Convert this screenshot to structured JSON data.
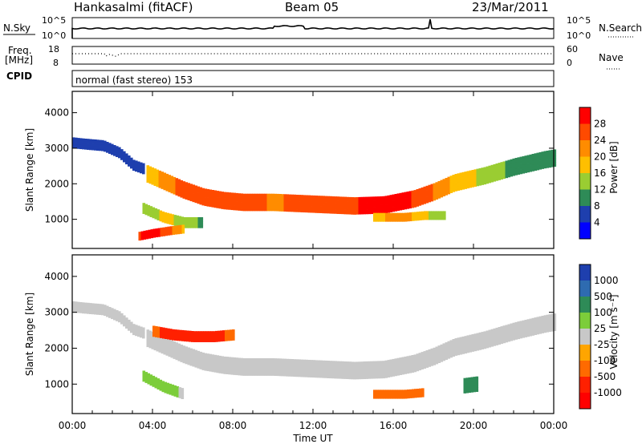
{
  "header": {
    "station": "Hankasalmi (fitACF)",
    "beam": "Beam 05",
    "date": "23/Mar/2011"
  },
  "strip_panels": {
    "nsky_label": "N.Sky",
    "nsearch_label": "N.Search",
    "nsky_ticks": [
      "10^5",
      "10^0"
    ],
    "nsearch_ticks": [
      "10^5",
      "10^0"
    ],
    "freq_label": [
      "Freq.",
      "[MHz]"
    ],
    "freq_ticks": [
      "18",
      "8"
    ],
    "nave_label": "Nave",
    "nave_ticks": [
      "60",
      "0"
    ],
    "cpid_label": "CPID",
    "cpid_text": "normal (fast stereo) 153"
  },
  "axes": {
    "x_label": "Time UT",
    "x_ticks": [
      "00:00",
      "04:00",
      "08:00",
      "12:00",
      "16:00",
      "20:00",
      "00:00"
    ],
    "y_label": "Slant Range [km]",
    "y_ticks": [
      "4000",
      "3000",
      "2000",
      "1000"
    ]
  },
  "colorbars": {
    "power": {
      "label": "Power [dB]",
      "ticks": [
        "28",
        "24",
        "20",
        "16",
        "12",
        "8",
        "4"
      ],
      "colors": [
        "#ff0000",
        "#ff4a00",
        "#ff8c00",
        "#ffbf00",
        "#9acd32",
        "#2e8b57",
        "#1e3fae",
        "#0000ff"
      ]
    },
    "velocity": {
      "label": "Velocity [m s⁻¹]",
      "ticks": [
        "1000",
        "500",
        "100",
        "25",
        "-25",
        "-100",
        "-500",
        "-1000"
      ],
      "colors": [
        "#1e3fae",
        "#2e6bb0",
        "#2e8b57",
        "#7ccd3a",
        "#c8c8c8",
        "#ffa500",
        "#ff6a00",
        "#ff2000",
        "#ff0000"
      ]
    }
  },
  "chart_data": [
    {
      "type": "heatmap",
      "title": "Power [dB]",
      "xlabel": "Time UT",
      "ylabel": "Slant Range [km]",
      "xlim": [
        0,
        24
      ],
      "ylim": [
        180,
        4600
      ],
      "zlim": [
        0,
        30
      ],
      "bands": [
        {
          "t": [
            0,
            0.5,
            1.5,
            2.3,
            3.0,
            3.5
          ],
          "r": [
            3130,
            3100,
            3050,
            2850,
            2500,
            2400
          ],
          "w": 250,
          "v": [
            6,
            6,
            7,
            7,
            6,
            6
          ]
        },
        {
          "t": [
            3.7,
            4.5,
            5.5,
            6.5,
            7.5,
            8.5,
            10,
            12,
            14,
            15.5,
            17,
            18,
            19,
            20.5,
            22,
            23.5,
            24
          ],
          "r": [
            2250,
            2050,
            1800,
            1600,
            1500,
            1450,
            1450,
            1400,
            1350,
            1380,
            1550,
            1750,
            2000,
            2200,
            2450,
            2650,
            2700
          ],
          "w": 420,
          "v": [
            16,
            20,
            24,
            26,
            26,
            24,
            22,
            24,
            26,
            28,
            26,
            22,
            18,
            14,
            10,
            8,
            8
          ]
        },
        {
          "t": [
            3.5,
            4.5,
            5.5,
            6.5
          ],
          "r": [
            1300,
            1050,
            900,
            900
          ],
          "w": 280,
          "v": [
            12,
            16,
            14,
            10
          ]
        },
        {
          "t": [
            3.3,
            4.0,
            4.8,
            5.5
          ],
          "r": [
            500,
            580,
            650,
            700
          ],
          "w": 180,
          "v": [
            26,
            28,
            24,
            18
          ]
        },
        {
          "t": [
            15.0,
            16.5,
            17.5,
            18.5
          ],
          "r": [
            1050,
            1050,
            1100,
            1100
          ],
          "w": 220,
          "v": [
            18,
            20,
            16,
            12
          ]
        }
      ]
    },
    {
      "type": "heatmap",
      "title": "Velocity [m s⁻¹]",
      "xlabel": "Time UT",
      "ylabel": "Slant Range [km]",
      "xlim": [
        0,
        24
      ],
      "ylim": [
        180,
        4600
      ],
      "zlim": [
        -1000,
        1000
      ],
      "bands": [
        {
          "t": [
            0,
            0.5,
            1.5,
            2.3,
            3.0,
            3.5
          ],
          "r": [
            3130,
            3100,
            3050,
            2850,
            2500,
            2400
          ],
          "w": 250,
          "v": [
            0,
            0,
            0,
            0,
            0,
            0
          ]
        },
        {
          "t": [
            3.7,
            4.5,
            5.5,
            6.5,
            7.5,
            8.5,
            10,
            12,
            14,
            15.5,
            17,
            18,
            19,
            20.5,
            22,
            23.5,
            24
          ],
          "r": [
            2250,
            2050,
            1800,
            1600,
            1500,
            1450,
            1450,
            1400,
            1350,
            1380,
            1550,
            1750,
            2000,
            2200,
            2450,
            2650,
            2700
          ],
          "w": 420,
          "v": [
            0,
            0,
            0,
            0,
            0,
            0,
            0,
            0,
            0,
            0,
            0,
            0,
            0,
            0,
            0,
            0,
            0
          ]
        },
        {
          "t": [
            4.0,
            5.0,
            6.0,
            7.0,
            8.0
          ],
          "r": [
            2450,
            2350,
            2300,
            2300,
            2350
          ],
          "w": 250,
          "v": [
            -400,
            -700,
            -800,
            -600,
            -400
          ]
        },
        {
          "t": [
            15.0,
            16.5,
            17.5
          ],
          "r": [
            700,
            700,
            750
          ],
          "w": 200,
          "v": [
            -150,
            -200,
            -150
          ]
        },
        {
          "t": [
            19.5,
            20.2
          ],
          "r": [
            950,
            1000
          ],
          "w": 400,
          "v": [
            150,
            150
          ]
        },
        {
          "t": [
            3.5,
            4.5,
            5.5
          ],
          "r": [
            1200,
            900,
            700
          ],
          "w": 250,
          "v": [
            60,
            40,
            20
          ]
        }
      ]
    }
  ]
}
